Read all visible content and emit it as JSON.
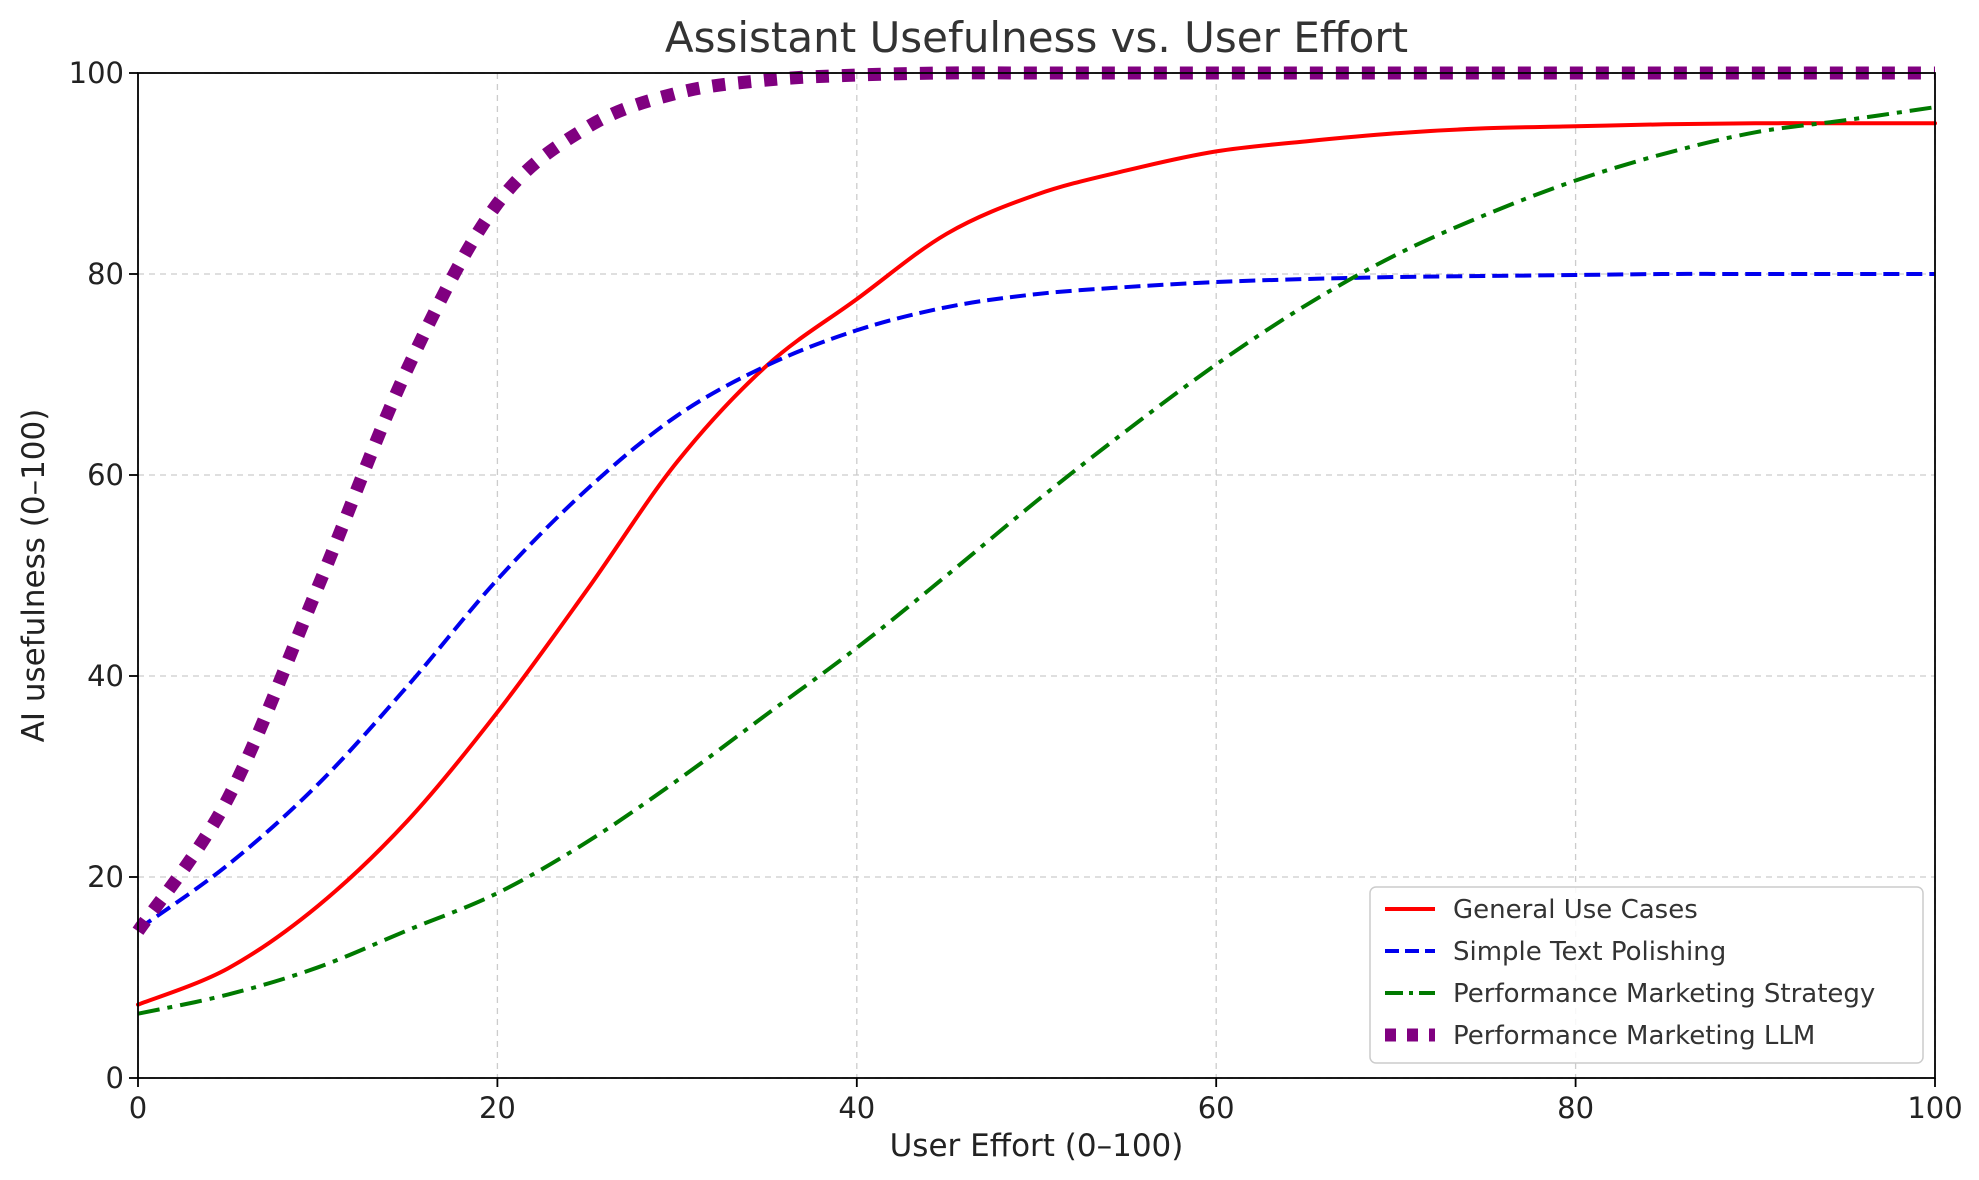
{
  "chart_data": {
    "type": "line",
    "title": "Assistant Usefulness vs. User Effort",
    "xlabel": "User Effort (0–100)",
    "ylabel": "AI usefulness (0–100)",
    "xlim": [
      0,
      100
    ],
    "ylim": [
      0,
      100
    ],
    "xticks": [
      0,
      20,
      40,
      60,
      80,
      100
    ],
    "yticks": [
      0,
      20,
      40,
      60,
      80,
      100
    ],
    "grid": true,
    "legend_position": "lower-right",
    "x": [
      0,
      5,
      10,
      15,
      20,
      25,
      30,
      35,
      40,
      45,
      50,
      55,
      60,
      65,
      70,
      75,
      80,
      85,
      90,
      95,
      100
    ],
    "series": [
      {
        "name": "General Use Cases",
        "color": "#ff0000",
        "style": "solid",
        "values": [
          7.3,
          10.9,
          17.1,
          25.6,
          36.4,
          48.6,
          61.3,
          70.9,
          77.5,
          84.0,
          87.9,
          90.3,
          92.2,
          93.2,
          94.0,
          94.5,
          94.7,
          94.9,
          95.0,
          95.0,
          95.0
        ]
      },
      {
        "name": "Simple Text Polishing",
        "color": "#0000ee",
        "style": "dashed",
        "values": [
          14.8,
          21.2,
          29.2,
          39.0,
          49.6,
          58.6,
          65.9,
          70.9,
          74.4,
          76.7,
          78.0,
          78.7,
          79.2,
          79.5,
          79.7,
          79.8,
          79.9,
          80.0,
          80.0,
          80.0,
          80.0
        ]
      },
      {
        "name": "Performance Marketing Strategy",
        "color": "#007a00",
        "style": "dashdot",
        "values": [
          6.4,
          8.3,
          11.0,
          14.7,
          18.4,
          23.5,
          29.6,
          36.2,
          42.8,
          50.0,
          57.4,
          64.4,
          71.0,
          76.9,
          81.9,
          85.9,
          89.3,
          92.0,
          94.1,
          95.3,
          96.6
        ]
      },
      {
        "name": "Performance Marketing LLM",
        "color": "#800080",
        "style": "dotted",
        "values": [
          14.6,
          27.8,
          48.8,
          70.6,
          87.0,
          94.6,
          98.0,
          99.3,
          99.8,
          100.0,
          100.0,
          100.0,
          100.0,
          100.0,
          100.0,
          100.0,
          100.0,
          100.0,
          100.0,
          100.0,
          100.0
        ]
      }
    ]
  }
}
